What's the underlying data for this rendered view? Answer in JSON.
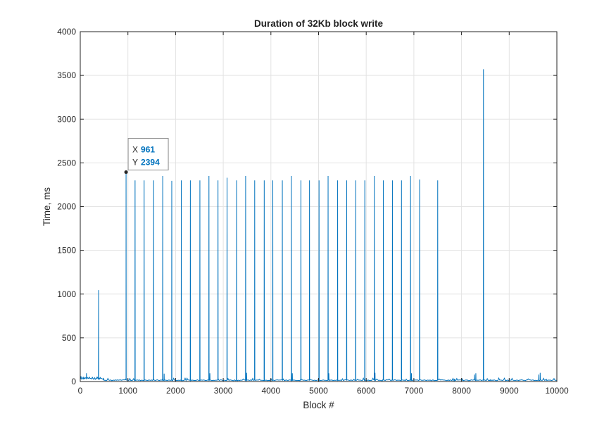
{
  "chart_data": {
    "type": "line",
    "title": "Duration of 32Kb block write",
    "xlabel": "Block #",
    "ylabel": "Time, ms",
    "xlim": [
      0,
      10000
    ],
    "ylim": [
      0,
      4000
    ],
    "x_ticks": [
      0,
      1000,
      2000,
      3000,
      4000,
      5000,
      6000,
      7000,
      8000,
      9000,
      10000
    ],
    "y_ticks": [
      0,
      500,
      1000,
      1500,
      2000,
      2500,
      3000,
      3500,
      4000
    ],
    "grid": true,
    "line_color": "#0072bd",
    "series": [
      {
        "baseline_value": 15,
        "spikes": [
          [
            15,
            60
          ],
          [
            40,
            45
          ],
          [
            70,
            50
          ],
          [
            100,
            45
          ],
          [
            130,
            95
          ],
          [
            160,
            50
          ],
          [
            200,
            45
          ],
          [
            250,
            45
          ],
          [
            300,
            40
          ],
          [
            350,
            55
          ],
          [
            385,
            1045
          ],
          [
            420,
            50
          ],
          [
            480,
            25
          ],
          [
            961,
            2394
          ],
          [
            1150,
            2300
          ],
          [
            1340,
            2300
          ],
          [
            1540,
            2300
          ],
          [
            1730,
            2350
          ],
          [
            1760,
            90
          ],
          [
            1920,
            2295
          ],
          [
            2120,
            2300
          ],
          [
            2310,
            2300
          ],
          [
            2510,
            2300
          ],
          [
            2700,
            2350
          ],
          [
            2720,
            95
          ],
          [
            2890,
            2300
          ],
          [
            3080,
            2330
          ],
          [
            3280,
            2300
          ],
          [
            3470,
            2350
          ],
          [
            3490,
            100
          ],
          [
            3660,
            2300
          ],
          [
            3860,
            2300
          ],
          [
            4040,
            2300
          ],
          [
            4240,
            2300
          ],
          [
            4430,
            2350
          ],
          [
            4450,
            95
          ],
          [
            4630,
            2300
          ],
          [
            4810,
            2300
          ],
          [
            5010,
            2300
          ],
          [
            5200,
            2350
          ],
          [
            5215,
            95
          ],
          [
            5400,
            2300
          ],
          [
            5590,
            2300
          ],
          [
            5780,
            2300
          ],
          [
            5970,
            2300
          ],
          [
            6170,
            2350
          ],
          [
            6185,
            100
          ],
          [
            6360,
            2300
          ],
          [
            6550,
            2300
          ],
          [
            6740,
            2300
          ],
          [
            6930,
            2350
          ],
          [
            6950,
            95
          ],
          [
            7120,
            2310
          ],
          [
            7500,
            2300
          ],
          [
            7850,
            30
          ],
          [
            8020,
            35
          ],
          [
            8270,
            80
          ],
          [
            8300,
            95
          ],
          [
            8460,
            3570
          ],
          [
            8600,
            25
          ],
          [
            9620,
            80
          ],
          [
            9650,
            100
          ],
          [
            9780,
            30
          ]
        ]
      }
    ]
  },
  "datatip": {
    "x_key": "X",
    "x_value": "961",
    "y_key": "Y",
    "y_value": "2394",
    "x_data": 961,
    "y_data": 2394
  }
}
